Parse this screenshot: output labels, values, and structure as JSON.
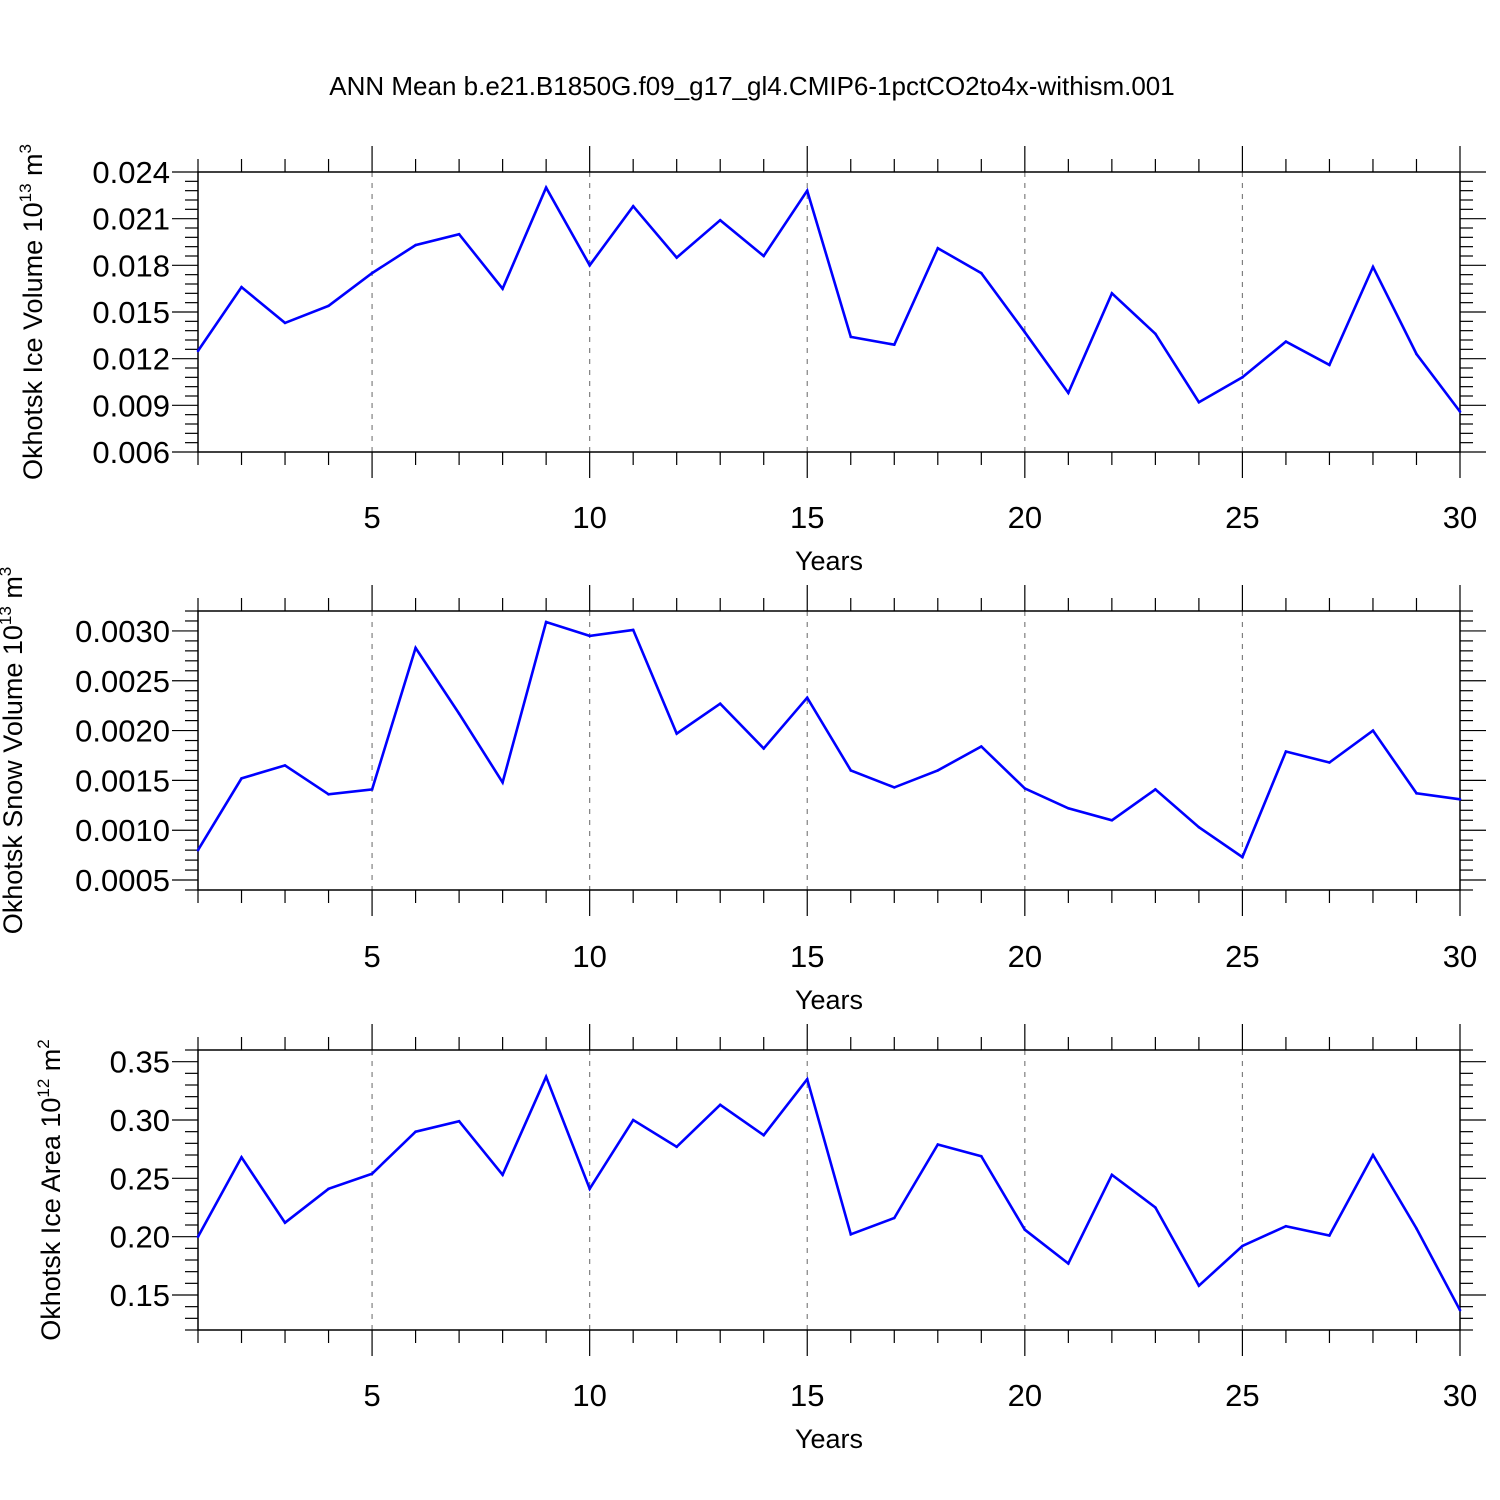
{
  "title": "ANN Mean b.e21.B1850G.f09_g17_gl4.CMIP6-1pctCO2to4x-withism.001",
  "colors": {
    "line": "#0000ff",
    "axis": "#000000",
    "grid": "#808080",
    "background": "#ffffff"
  },
  "chart_data": [
    {
      "type": "line",
      "ylabel": "Okhotsk Ice Volume 10",
      "ylabel_exp": "13",
      "ylabel_unit": " m",
      "ylabel_unit_exp": "3",
      "xlabel": "Years",
      "xlim": [
        1,
        30
      ],
      "ylim": [
        0.006,
        0.024
      ],
      "yticks": [
        0.006,
        0.009,
        0.012,
        0.015,
        0.018,
        0.021,
        0.024
      ],
      "ytick_labels": [
        "0.006",
        "0.009",
        "0.012",
        "0.015",
        "0.018",
        "0.021",
        "0.024"
      ],
      "xticks": [
        5,
        10,
        15,
        20,
        25,
        30
      ],
      "xtick_labels": [
        "5",
        "10",
        "15",
        "20",
        "25",
        "30"
      ],
      "x": [
        1,
        2,
        3,
        4,
        5,
        6,
        7,
        8,
        9,
        10,
        11,
        12,
        13,
        14,
        15,
        16,
        17,
        18,
        19,
        20,
        21,
        22,
        23,
        24,
        25,
        26,
        27,
        28,
        29,
        30
      ],
      "y": [
        0.0125,
        0.0166,
        0.0143,
        0.0154,
        0.0175,
        0.0193,
        0.02,
        0.0165,
        0.023,
        0.018,
        0.0218,
        0.0185,
        0.0209,
        0.0186,
        0.0228,
        0.0134,
        0.0129,
        0.0191,
        0.0175,
        0.0137,
        0.0098,
        0.0162,
        0.0136,
        0.0092,
        0.0108,
        0.0131,
        0.0116,
        0.0179,
        0.0123,
        0.0086
      ]
    },
    {
      "type": "line",
      "ylabel": "Okhotsk Snow Volume 10",
      "ylabel_exp": "13",
      "ylabel_unit": " m",
      "ylabel_unit_exp": "3",
      "xlabel": "Years",
      "xlim": [
        1,
        30
      ],
      "ylim": [
        0.0004,
        0.0032
      ],
      "yticks": [
        0.0005,
        0.001,
        0.0015,
        0.002,
        0.0025,
        0.003
      ],
      "ytick_labels": [
        "0.0005",
        "0.0010",
        "0.0015",
        "0.0020",
        "0.0025",
        "0.0030"
      ],
      "xticks": [
        5,
        10,
        15,
        20,
        25,
        30
      ],
      "xtick_labels": [
        "5",
        "10",
        "15",
        "20",
        "25",
        "30"
      ],
      "x": [
        1,
        2,
        3,
        4,
        5,
        6,
        7,
        8,
        9,
        10,
        11,
        12,
        13,
        14,
        15,
        16,
        17,
        18,
        19,
        20,
        21,
        22,
        23,
        24,
        25,
        26,
        27,
        28,
        29,
        30
      ],
      "y": [
        0.0008,
        0.00152,
        0.00165,
        0.00136,
        0.00141,
        0.00283,
        0.00217,
        0.00148,
        0.00309,
        0.00295,
        0.00301,
        0.00197,
        0.00227,
        0.00182,
        0.00233,
        0.0016,
        0.00143,
        0.0016,
        0.00184,
        0.00142,
        0.00122,
        0.0011,
        0.00141,
        0.00103,
        0.00073,
        0.00179,
        0.00168,
        0.002,
        0.00137,
        0.00131
      ]
    },
    {
      "type": "line",
      "ylabel": "Okhotsk Ice Area 10",
      "ylabel_exp": "12",
      "ylabel_unit": " m",
      "ylabel_unit_exp": "2",
      "xlabel": "Years",
      "xlim": [
        1,
        30
      ],
      "ylim": [
        0.12,
        0.36
      ],
      "yticks": [
        0.15,
        0.2,
        0.25,
        0.3,
        0.35
      ],
      "ytick_labels": [
        "0.15",
        "0.20",
        "0.25",
        "0.30",
        "0.35"
      ],
      "xticks": [
        5,
        10,
        15,
        20,
        25,
        30
      ],
      "xtick_labels": [
        "5",
        "10",
        "15",
        "20",
        "25",
        "30"
      ],
      "x": [
        1,
        2,
        3,
        4,
        5,
        6,
        7,
        8,
        9,
        10,
        11,
        12,
        13,
        14,
        15,
        16,
        17,
        18,
        19,
        20,
        21,
        22,
        23,
        24,
        25,
        26,
        27,
        28,
        29,
        30
      ],
      "y": [
        0.2,
        0.268,
        0.212,
        0.241,
        0.254,
        0.29,
        0.299,
        0.253,
        0.337,
        0.241,
        0.3,
        0.277,
        0.313,
        0.287,
        0.335,
        0.202,
        0.216,
        0.279,
        0.269,
        0.206,
        0.177,
        0.253,
        0.225,
        0.158,
        0.192,
        0.209,
        0.201,
        0.27,
        0.207,
        0.137
      ]
    }
  ]
}
